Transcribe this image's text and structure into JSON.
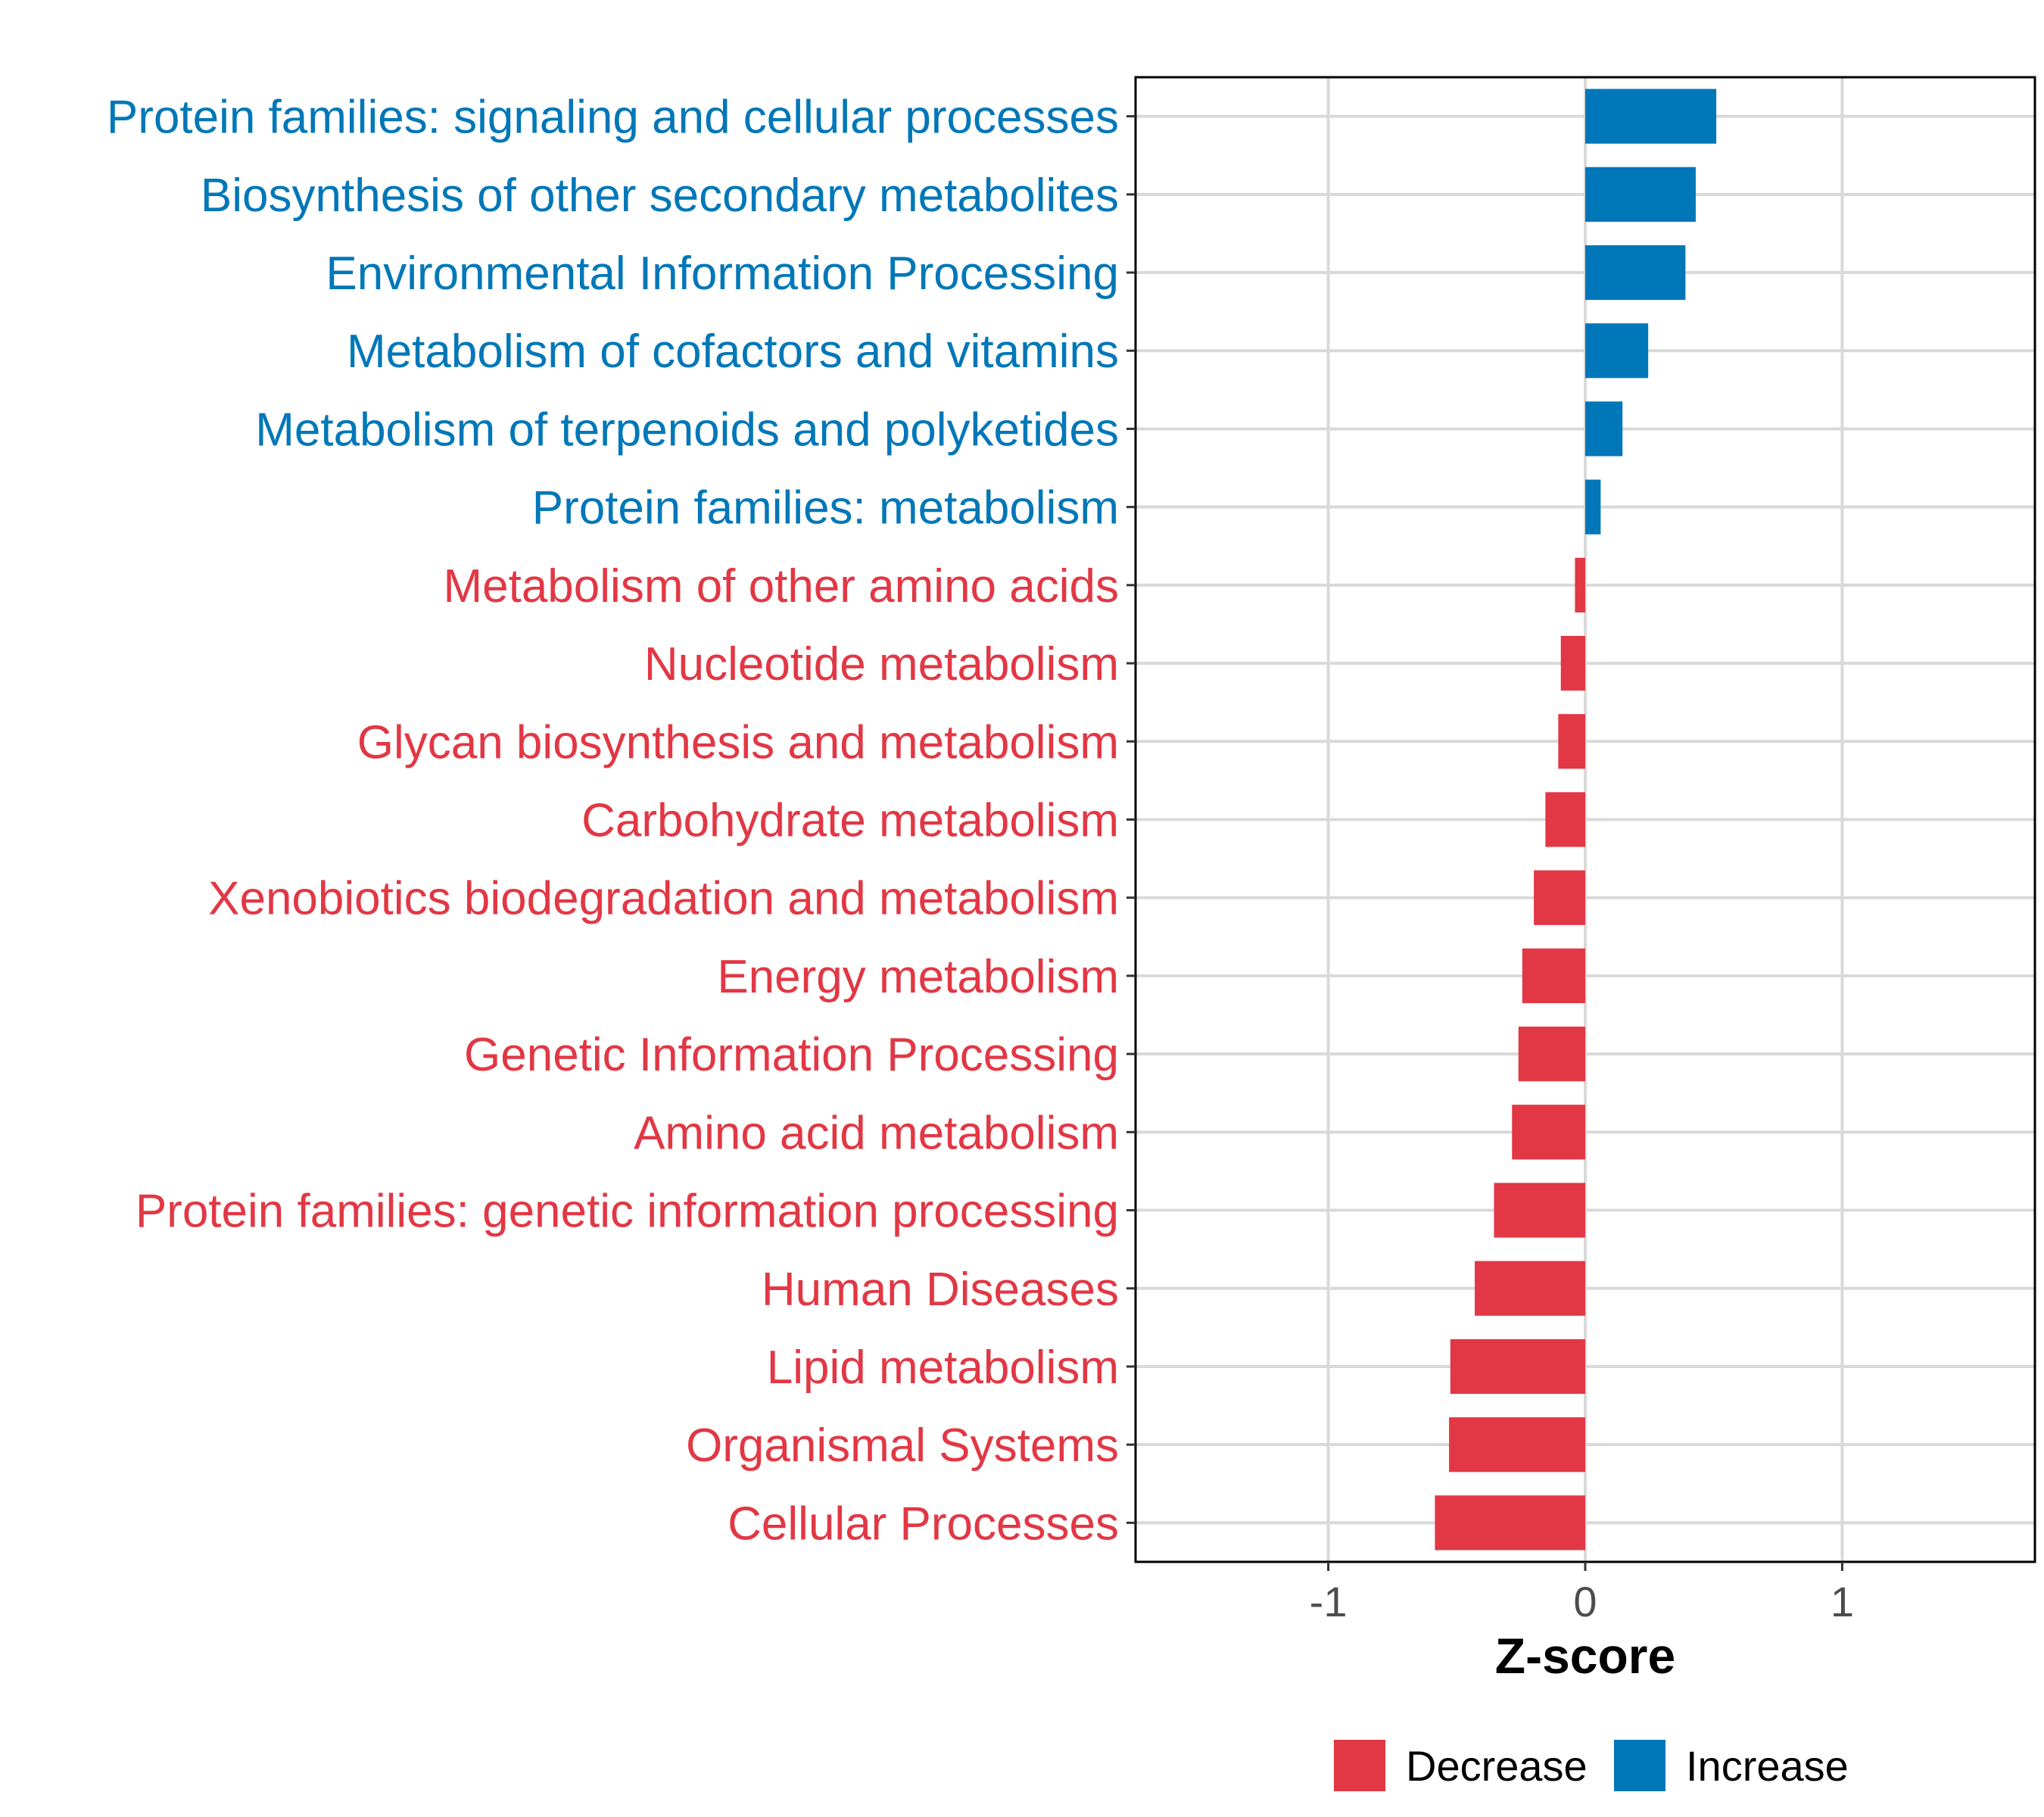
{
  "chart_data": {
    "type": "bar",
    "orientation": "horizontal",
    "xlabel": "Z-score",
    "xlim": [
      -1.75,
      1.75
    ],
    "xticks": [
      -1,
      0,
      1
    ],
    "xtick_labels": [
      "-1",
      "0",
      "1"
    ],
    "grid": true,
    "legend_position": "bottom",
    "colors": {
      "Decrease": "#e23744",
      "Increase": "#0077b8"
    },
    "legend": [
      {
        "label": "Decrease",
        "color": "#e23744"
      },
      {
        "label": "Increase",
        "color": "#0077b8"
      }
    ],
    "bars": [
      {
        "category": "Protein families: signaling and cellular processes",
        "value": 0.51,
        "group": "Increase"
      },
      {
        "category": "Biosynthesis of other secondary metabolites",
        "value": 0.43,
        "group": "Increase"
      },
      {
        "category": "Environmental Information Processing",
        "value": 0.39,
        "group": "Increase"
      },
      {
        "category": "Metabolism of cofactors and vitamins",
        "value": 0.245,
        "group": "Increase"
      },
      {
        "category": "Metabolism of terpenoids and polyketides",
        "value": 0.145,
        "group": "Increase"
      },
      {
        "category": "Protein families: metabolism",
        "value": 0.06,
        "group": "Increase"
      },
      {
        "category": "Metabolism of other amino acids",
        "value": -0.04,
        "group": "Decrease"
      },
      {
        "category": "Nucleotide metabolism",
        "value": -0.095,
        "group": "Decrease"
      },
      {
        "category": "Glycan biosynthesis and metabolism",
        "value": -0.105,
        "group": "Decrease"
      },
      {
        "category": "Carbohydrate metabolism",
        "value": -0.155,
        "group": "Decrease"
      },
      {
        "category": "Xenobiotics biodegradation and metabolism",
        "value": -0.2,
        "group": "Decrease"
      },
      {
        "category": "Energy metabolism",
        "value": -0.245,
        "group": "Decrease"
      },
      {
        "category": "Genetic Information Processing",
        "value": -0.26,
        "group": "Decrease"
      },
      {
        "category": "Amino acid metabolism",
        "value": -0.285,
        "group": "Decrease"
      },
      {
        "category": "Protein families: genetic information processing",
        "value": -0.355,
        "group": "Decrease"
      },
      {
        "category": "Human Diseases",
        "value": -0.43,
        "group": "Decrease"
      },
      {
        "category": "Lipid metabolism",
        "value": -0.525,
        "group": "Decrease"
      },
      {
        "category": "Organismal Systems",
        "value": -0.53,
        "group": "Decrease"
      },
      {
        "category": "Cellular Processes",
        "value": -0.585,
        "group": "Decrease"
      }
    ]
  }
}
